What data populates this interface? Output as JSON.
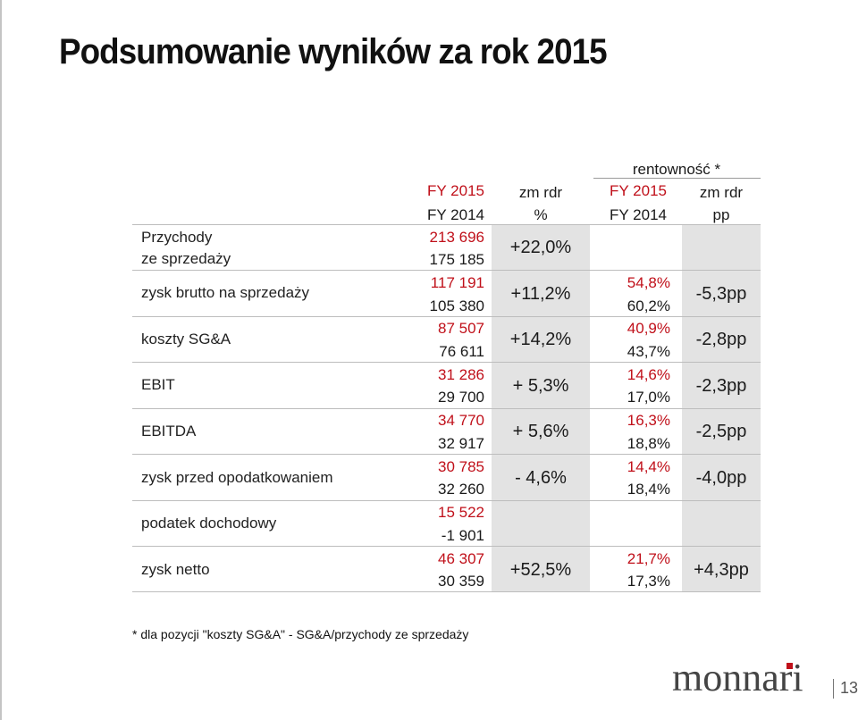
{
  "title": "Podsumowanie wyników za rok 2015",
  "header": {
    "rentownosc": "rentowność *",
    "col1_top": "FY 2015",
    "col1_bottom": "FY 2014",
    "col2_top": "zm rdr",
    "col2_bottom": "%",
    "col3_top": "FY 2015",
    "col3_bottom": "FY 2014",
    "col4_top": "zm rdr",
    "col4_bottom": "pp"
  },
  "rows": [
    {
      "label1": "Przychody",
      "label2": "ze sprzedaży",
      "fy2015": "213 696",
      "fy2014": "175 185",
      "zm": "+22,0%",
      "m2015": "",
      "m2014": "",
      "pp": ""
    },
    {
      "label1": "zysk brutto na sprzedaży",
      "label2": "",
      "fy2015": "117 191",
      "fy2014": "105 380",
      "zm": "+11,2%",
      "m2015": "54,8%",
      "m2014": "60,2%",
      "pp": "-5,3pp"
    },
    {
      "label1": "koszty SG&A",
      "label2": "",
      "fy2015": "87 507",
      "fy2014": "76 611",
      "zm": "+14,2%",
      "m2015": "40,9%",
      "m2014": "43,7%",
      "pp": "-2,8pp"
    },
    {
      "label1": "EBIT",
      "label2": "",
      "fy2015": "31 286",
      "fy2014": "29 700",
      "zm": "+ 5,3%",
      "m2015": "14,6%",
      "m2014": "17,0%",
      "pp": "-2,3pp"
    },
    {
      "label1": "EBITDA",
      "label2": "",
      "fy2015": "34 770",
      "fy2014": "32 917",
      "zm": "+ 5,6%",
      "m2015": "16,3%",
      "m2014": "18,8%",
      "pp": "-2,5pp"
    },
    {
      "label1": "zysk przed opodatkowaniem",
      "label2": "",
      "fy2015": "30 785",
      "fy2014": "32 260",
      "zm": "- 4,6%",
      "m2015": "14,4%",
      "m2014": "18,4%",
      "pp": "-4,0pp"
    },
    {
      "label1": "podatek dochodowy",
      "label2": "",
      "fy2015": "15 522",
      "fy2014": "-1 901",
      "zm": "",
      "m2015": "",
      "m2014": "",
      "pp": ""
    },
    {
      "label1": "zysk netto",
      "label2": "",
      "fy2015": "46 307",
      "fy2014": "30 359",
      "zm": "+52,5%",
      "m2015": "21,7%",
      "m2014": "17,3%",
      "pp": "+4,3pp"
    }
  ],
  "footnote": "* dla pozycji \"koszty SG&A\" - SG&A/przychody ze sprzedaży",
  "logo_text": "monnari",
  "page_number": "13",
  "colors": {
    "accent": "#c0101a",
    "band": "#e3e3e3"
  }
}
